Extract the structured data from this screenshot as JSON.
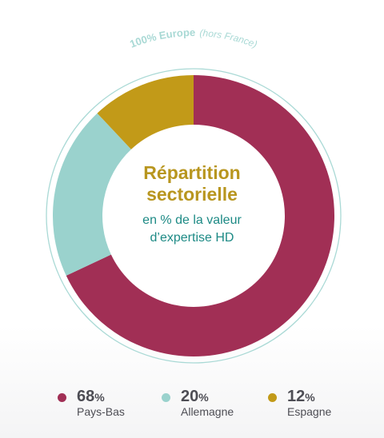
{
  "chart_data": {
    "type": "pie",
    "title": "Répartition sectorielle",
    "subtitle": [
      "en % de la valeur",
      "d’expertise HD"
    ],
    "arc_label": {
      "main": "100% Europe",
      "note": "(hors France)"
    },
    "unit": "%",
    "categories": [
      "Pays-Bas",
      "Allemagne",
      "Espagne"
    ],
    "values": [
      68,
      20,
      12
    ],
    "colors": [
      "#a12f55",
      "#9ad2cd",
      "#c29a18"
    ],
    "legend_position": "bottom"
  },
  "title_lines": [
    "Répartition",
    "sectorielle"
  ]
}
